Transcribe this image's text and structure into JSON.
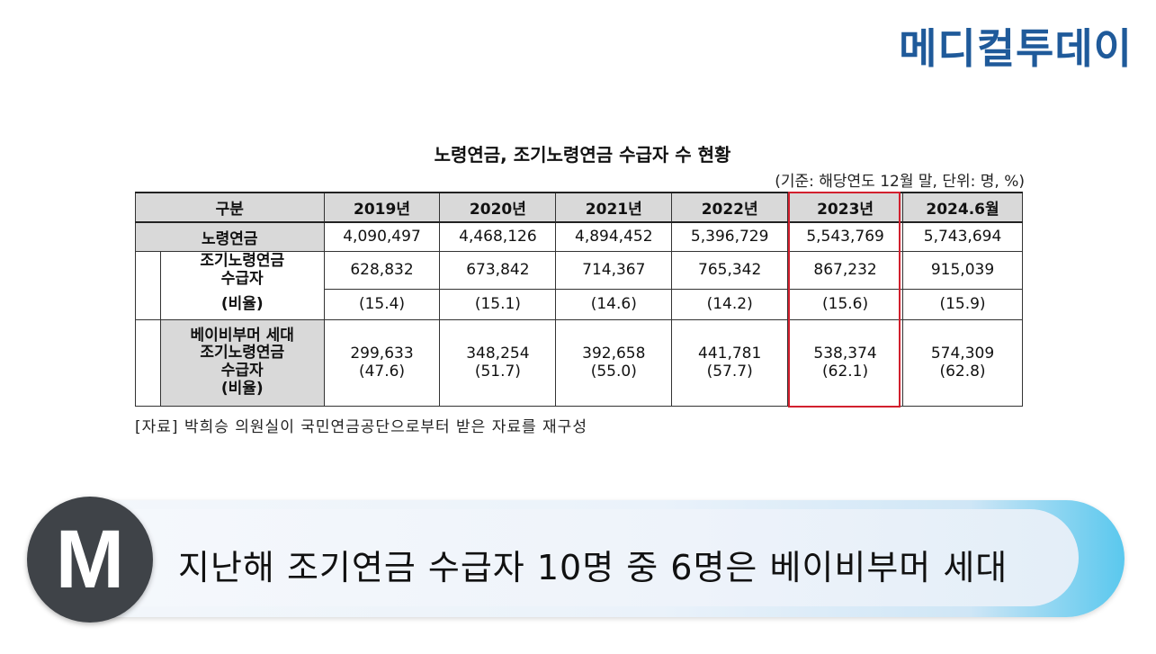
{
  "logo": {
    "text": "메디컬투데이"
  },
  "document": {
    "title": "노령연금, 조기노령연금 수급자 수 현황",
    "basis": "(기준: 해당연도 12월 말, 단위: 명, %)",
    "source": "[자료] 박희승 의원실이 국민연금공단으로부터 받은 자료를 재구성"
  },
  "table": {
    "header": [
      "구분",
      "2019년",
      "2020년",
      "2021년",
      "2022년",
      "2023년",
      "2024.6월"
    ],
    "rows": {
      "old_age": {
        "label": "노령연금",
        "values": [
          "4,090,497",
          "4,468,126",
          "4,894,452",
          "5,396,729",
          "5,543,769",
          "5,743,694"
        ]
      },
      "early": {
        "label_1": "조기노령연금",
        "label_2": "수급자",
        "label_3": "(비율)",
        "values": [
          "628,832",
          "673,842",
          "714,367",
          "765,342",
          "867,232",
          "915,039"
        ],
        "ratios": [
          "(15.4)",
          "(15.1)",
          "(14.6)",
          "(14.2)",
          "(15.6)",
          "(15.9)"
        ]
      },
      "boomer": {
        "label_1": "베이비부머 세대",
        "label_2": "조기노령연금",
        "label_3": "수급자",
        "label_4": "(비율)",
        "values": [
          "299,633",
          "348,254",
          "392,658",
          "441,781",
          "538,374",
          "574,309"
        ],
        "ratios": [
          "(47.6)",
          "(51.7)",
          "(55.0)",
          "(57.7)",
          "(62.1)",
          "(62.8)"
        ]
      }
    },
    "highlight_column": "2023년",
    "highlight_color": "#d2202e"
  },
  "banner": {
    "badge": "M",
    "headline": "지난해 조기연금 수급자 10명 중 6명은 베이비부머 세대"
  }
}
